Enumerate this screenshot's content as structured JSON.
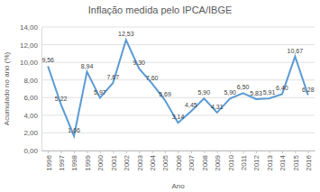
{
  "chart_data": {
    "type": "line",
    "title": "Inflação medida pelo IPCA/IBGE",
    "x_label": "Ano",
    "y_label": "Acumulado no ano (%)",
    "categories": [
      "1996",
      "1997",
      "1998",
      "1999",
      "2000",
      "2001",
      "2002",
      "2003",
      "2004",
      "2005",
      "2006",
      "2007",
      "2008",
      "2009",
      "2010",
      "2011",
      "2012",
      "2013",
      "2014",
      "2015",
      "2016"
    ],
    "values": [
      9.56,
      5.22,
      1.66,
      8.94,
      5.97,
      7.67,
      12.53,
      9.3,
      7.6,
      5.69,
      3.14,
      4.45,
      5.9,
      4.31,
      5.9,
      6.5,
      5.83,
      5.91,
      6.4,
      10.67,
      6.28
    ],
    "value_labels": [
      "9,56",
      "5,22",
      "1,66",
      "8,94",
      "5,97",
      "7,67",
      "12,53",
      "9,30",
      "7,60",
      "5,69",
      "3,14",
      "4,45",
      "5,90",
      "4,31",
      "5,90",
      "6,50",
      "5,83",
      "5,91",
      "6,40",
      "10,67",
      "6,28"
    ],
    "color": "#5b9bd5",
    "line_style": "solid",
    "marker": "none",
    "ylim": [
      0,
      14
    ],
    "yticks": [
      {
        "value": 0,
        "label": "0,00"
      },
      {
        "value": 2,
        "label": "2,00"
      },
      {
        "value": 4,
        "label": "4,00"
      },
      {
        "value": 6,
        "label": "6,00"
      },
      {
        "value": 8,
        "label": "8,00"
      },
      {
        "value": 10,
        "label": "10,00"
      },
      {
        "value": 12,
        "label": "12,00"
      },
      {
        "value": 14,
        "label": "14,00"
      }
    ],
    "grid": true,
    "data_labels": true
  }
}
